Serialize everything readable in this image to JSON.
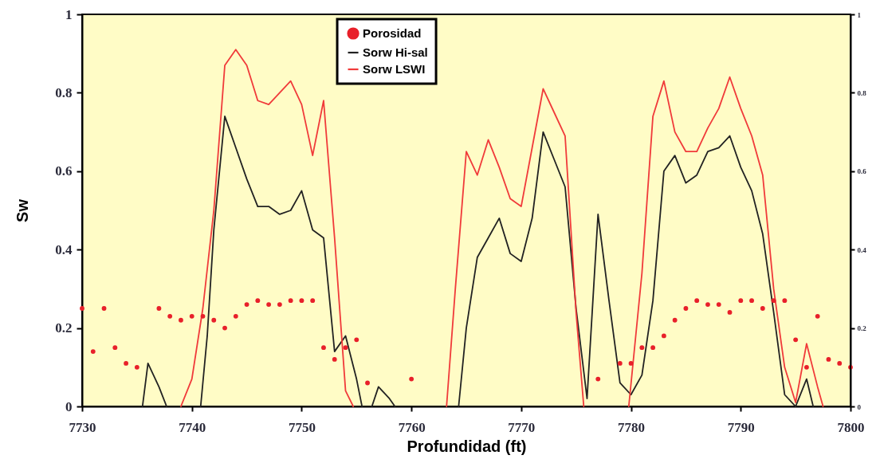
{
  "chart_data": {
    "type": "line",
    "xlabel": "Profundidad (ft)",
    "ylabel": "Sw",
    "xlim": [
      7730,
      7800
    ],
    "xticks": [
      7730,
      7740,
      7750,
      7760,
      7770,
      7780,
      7790,
      7800
    ],
    "ylim": [
      0,
      1
    ],
    "yticks": [
      0,
      0.2,
      0.4,
      0.6,
      0.8,
      1
    ],
    "y2lim": [
      0,
      1
    ],
    "y2ticks": [
      0,
      0.2,
      0.4,
      0.6,
      0.8,
      1
    ],
    "grid": false,
    "legend": "top",
    "series": [
      {
        "name": "Porosidad",
        "type": "scatter",
        "marker": "circle",
        "color": "#e8202a",
        "x": [
          7730,
          7731,
          7732,
          7733,
          7734,
          7735,
          7737,
          7738,
          7739,
          7740,
          7741,
          7742,
          7743,
          7744,
          7745,
          7746,
          7747,
          7748,
          7749,
          7750,
          7751,
          7752,
          7753,
          7754,
          7755,
          7756,
          7760,
          7777,
          7779,
          7780,
          7781,
          7782,
          7783,
          7784,
          7785,
          7786,
          7787,
          7788,
          7789,
          7790,
          7791,
          7792,
          7793,
          7794,
          7795,
          7796,
          7797,
          7798,
          7799,
          7800
        ],
        "values": [
          0.25,
          0.14,
          0.25,
          0.15,
          0.11,
          0.1,
          0.25,
          0.23,
          0.22,
          0.23,
          0.23,
          0.22,
          0.2,
          0.23,
          0.26,
          0.27,
          0.26,
          0.26,
          0.27,
          0.27,
          0.27,
          0.15,
          0.12,
          0.15,
          0.17,
          0.06,
          0.07,
          0.07,
          0.11,
          0.11,
          0.15,
          0.15,
          0.18,
          0.22,
          0.25,
          0.27,
          0.26,
          0.26,
          0.24,
          0.27,
          0.27,
          0.25,
          0.27,
          0.27,
          0.17,
          0.1,
          0.23,
          0.12,
          0.11,
          0.1
        ]
      },
      {
        "name": "Sorw Hi-sal",
        "line_style": "solid",
        "color": "#222222",
        "x": [
          7735.5,
          7736,
          7737,
          7737.7,
          7739,
          7740.8,
          7741.4,
          7742,
          7743,
          7744,
          7745,
          7746,
          7747,
          7748,
          7749,
          7750,
          7751,
          7752,
          7753,
          7754,
          7755,
          7755.5,
          7756,
          7756.4,
          7757,
          7758,
          7758.5,
          7761,
          7764.3,
          7765,
          7766,
          7767,
          7768,
          7769,
          7770,
          7771,
          7772,
          7773,
          7774,
          7775,
          7776,
          7777,
          7778,
          7779,
          7780,
          7781,
          7782,
          7783,
          7784,
          7785,
          7786,
          7787,
          7788,
          7789,
          7790,
          7791,
          7792,
          7793,
          7794,
          7795,
          7796,
          7796.6
        ],
        "values": [
          0,
          0.11,
          0.05,
          0,
          null,
          0,
          0.18,
          0.45,
          0.74,
          0.66,
          0.58,
          0.51,
          0.51,
          0.49,
          0.5,
          0.55,
          0.45,
          0.43,
          0.14,
          0.18,
          0.07,
          0,
          null,
          0,
          0.05,
          0.02,
          0,
          null,
          0,
          0.2,
          0.38,
          0.43,
          0.48,
          0.39,
          0.37,
          0.48,
          0.7,
          0.63,
          0.56,
          0.25,
          0.02,
          0.49,
          0.27,
          0.06,
          0.03,
          0.08,
          0.27,
          0.6,
          0.64,
          0.57,
          0.59,
          0.65,
          0.66,
          0.69,
          0.61,
          0.55,
          0.44,
          0.24,
          0.03,
          0,
          0.07,
          0
        ]
      },
      {
        "name": "Sorw LSWI",
        "line_style": "solid",
        "color": "#f03a3a",
        "x": [
          7739,
          7740,
          7741,
          7742,
          7743,
          7744,
          7745,
          7746,
          7747,
          7748,
          7749,
          7750,
          7751,
          7752,
          7753,
          7754,
          7754.7,
          7759,
          7763.2,
          7764,
          7765,
          7766,
          7767,
          7768,
          7769,
          7770,
          7771,
          7772,
          7773,
          7774,
          7775,
          7775.7,
          7778,
          7779.8,
          7781,
          7782,
          7783,
          7784,
          7785,
          7786,
          7787,
          7788,
          7789,
          7790,
          7791,
          7792,
          7793,
          7794,
          7795,
          7796,
          7797,
          7797.5
        ],
        "values": [
          0,
          0.07,
          0.25,
          0.5,
          0.87,
          0.91,
          0.87,
          0.78,
          0.77,
          0.8,
          0.83,
          0.77,
          0.64,
          0.78,
          0.43,
          0.04,
          0,
          null,
          0,
          0.3,
          0.65,
          0.59,
          0.68,
          0.61,
          0.53,
          0.51,
          0.66,
          0.81,
          0.75,
          0.69,
          0.24,
          0,
          null,
          0,
          0.34,
          0.74,
          0.83,
          0.7,
          0.65,
          0.65,
          0.71,
          0.76,
          0.84,
          0.76,
          0.69,
          0.59,
          0.3,
          0.1,
          0.01,
          0.16,
          0.05,
          0
        ]
      }
    ]
  }
}
